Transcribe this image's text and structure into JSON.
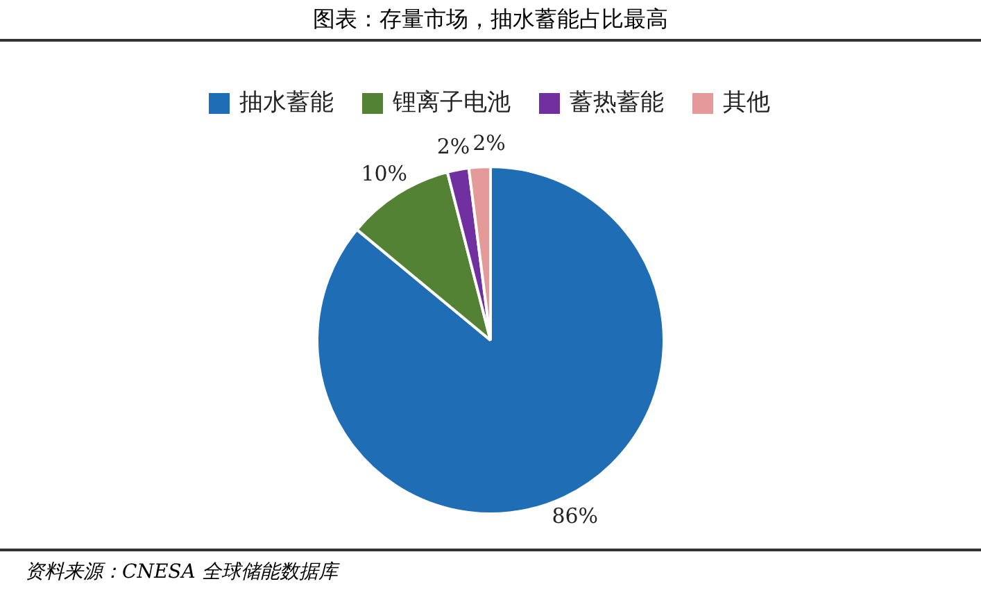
{
  "chart_data": {
    "type": "pie",
    "title": "图表：存量市场，抽水蓄能占比最高",
    "categories": [
      "抽水蓄能",
      "锂离子电池",
      "蓄热蓄能",
      "其他"
    ],
    "values": [
      86,
      10,
      2,
      2
    ],
    "colors": [
      "#1f6db5",
      "#548235",
      "#7030a0",
      "#e59a9a"
    ],
    "legend": "top",
    "value_labels": [
      "86%",
      "10%",
      "2%",
      "2%"
    ],
    "annotations": [
      "资料来源：CNESA 全球储能数据库"
    ]
  }
}
